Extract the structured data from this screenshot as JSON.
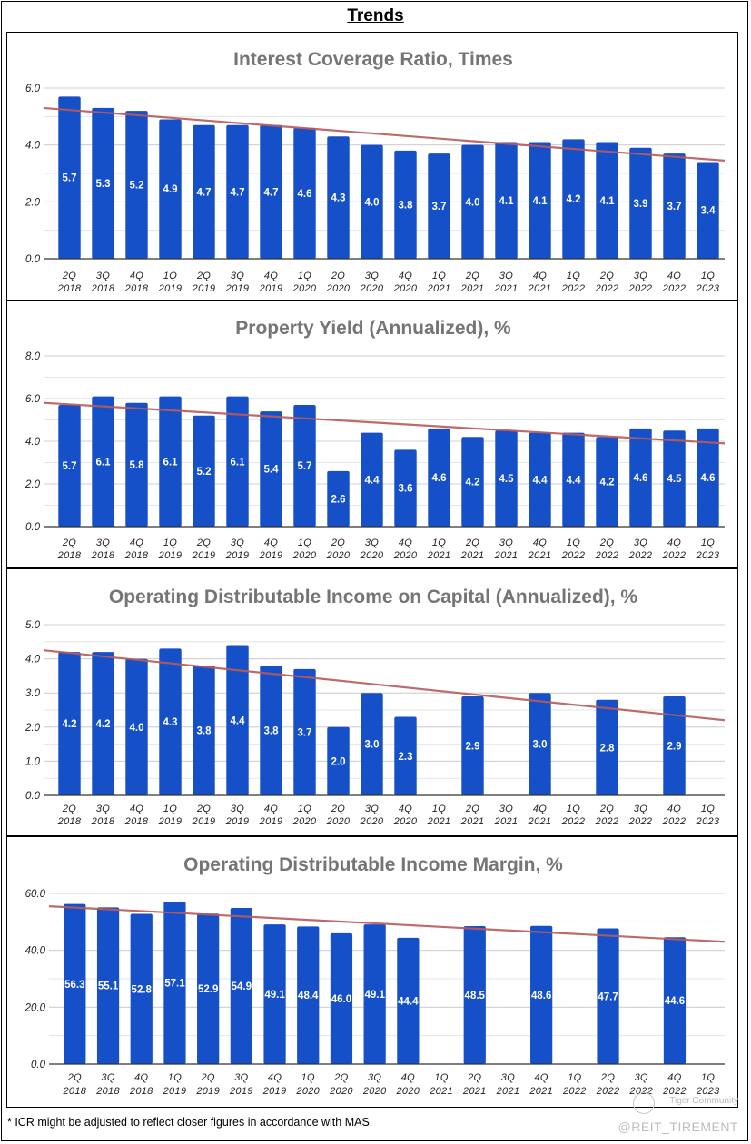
{
  "page": {
    "title": "Trends",
    "footnote": "* ICR might be adjusted to reflect closer figures in accordance with MAS",
    "watermark_brand": "Tiger Community",
    "watermark_handle": "@REIT_TIREMENT"
  },
  "colors": {
    "bar": "#1550c8",
    "trendline": "#b85a5a",
    "gridline": "#d0d0d0",
    "axis": "#333333",
    "title": "#757575"
  },
  "chart_data": [
    {
      "type": "bar",
      "title": "Interest Coverage Ratio, Times",
      "xlabel": "",
      "ylabel": "",
      "ylim": [
        0,
        6
      ],
      "yticks": [
        "0.0",
        "2.0",
        "4.0",
        "6.0"
      ],
      "minor_grid_step": 1,
      "grid": true,
      "categories": [
        "2Q 2018",
        "3Q 2018",
        "4Q 2018",
        "1Q 2019",
        "2Q 2019",
        "3Q 2019",
        "4Q 2019",
        "1Q 2020",
        "2Q 2020",
        "3Q 2020",
        "4Q 2020",
        "1Q 2021",
        "2Q 2021",
        "3Q 2021",
        "4Q 2021",
        "1Q 2022",
        "2Q 2022",
        "3Q 2022",
        "4Q 2022",
        "1Q 2023"
      ],
      "values": [
        5.7,
        5.3,
        5.2,
        4.9,
        4.7,
        4.7,
        4.7,
        4.6,
        4.3,
        4.0,
        3.8,
        3.7,
        4.0,
        4.1,
        4.1,
        4.2,
        4.1,
        3.9,
        3.7,
        3.4
      ],
      "labels": [
        "5.7",
        "5.3",
        "5.2",
        "4.9",
        "4.7",
        "4.7",
        "4.7",
        "4.6",
        "4.3",
        "4.0",
        "3.8",
        "3.7",
        "4.0",
        "4.1",
        "4.1",
        "4.2",
        "4.1",
        "3.9",
        "3.7",
        "3.4"
      ],
      "trendline": {
        "type": "linear",
        "start": 5.3,
        "end": 3.45
      }
    },
    {
      "type": "bar",
      "title": "Property Yield (Annualized), %",
      "xlabel": "",
      "ylabel": "",
      "ylim": [
        0,
        8
      ],
      "yticks": [
        "0.0",
        "2.0",
        "4.0",
        "6.0",
        "8.0"
      ],
      "minor_grid_step": 1,
      "grid": true,
      "categories": [
        "2Q 2018",
        "3Q 2018",
        "4Q 2018",
        "1Q 2019",
        "2Q 2019",
        "3Q 2019",
        "4Q 2019",
        "1Q 2020",
        "2Q 2020",
        "3Q 2020",
        "4Q 2020",
        "1Q 2021",
        "2Q 2021",
        "3Q 2021",
        "4Q 2021",
        "1Q 2022",
        "2Q 2022",
        "3Q 2022",
        "4Q 2022",
        "1Q 2023"
      ],
      "values": [
        5.7,
        6.1,
        5.8,
        6.1,
        5.2,
        6.1,
        5.4,
        5.7,
        2.6,
        4.4,
        3.6,
        4.6,
        4.2,
        4.5,
        4.4,
        4.4,
        4.2,
        4.6,
        4.5,
        4.6
      ],
      "labels": [
        "5.7",
        "6.1",
        "5.8",
        "6.1",
        "5.2",
        "6.1",
        "5.4",
        "5.7",
        "2.6",
        "4.4",
        "3.6",
        "4.6",
        "4.2",
        "4.5",
        "4.4",
        "4.4",
        "4.2",
        "4.6",
        "4.5",
        "4.6"
      ],
      "trendline": {
        "type": "linear",
        "start": 5.8,
        "end": 3.9
      }
    },
    {
      "type": "bar",
      "title": "Operating Distributable Income on Capital (Annualized), %",
      "xlabel": "",
      "ylabel": "",
      "ylim": [
        0,
        5
      ],
      "yticks": [
        "0.0",
        "1.0",
        "2.0",
        "3.0",
        "4.0",
        "5.0"
      ],
      "minor_grid_step": 0.5,
      "grid": true,
      "categories": [
        "2Q 2018",
        "3Q 2018",
        "4Q 2018",
        "1Q 2019",
        "2Q 2019",
        "3Q 2019",
        "4Q 2019",
        "1Q 2020",
        "2Q 2020",
        "3Q 2020",
        "4Q 2020",
        "1Q 2021",
        "2Q 2021",
        "3Q 2021",
        "4Q 2021",
        "1Q 2022",
        "2Q 2022",
        "3Q 2022",
        "4Q 2022",
        "1Q 2023"
      ],
      "values": [
        4.2,
        4.2,
        4.0,
        4.3,
        3.8,
        4.4,
        3.8,
        3.7,
        2.0,
        3.0,
        2.3,
        null,
        2.9,
        null,
        3.0,
        null,
        2.8,
        null,
        2.9,
        null
      ],
      "labels": [
        "4.2",
        "4.2",
        "4.0",
        "4.3",
        "3.8",
        "4.4",
        "3.8",
        "3.7",
        "2.0",
        "3.0",
        "2.3",
        "",
        "2.9",
        "",
        "3.0",
        "",
        "2.8",
        "",
        "2.9",
        ""
      ],
      "trendline": {
        "type": "linear",
        "start": 4.25,
        "end": 2.2
      }
    },
    {
      "type": "bar",
      "title": "Operating Distributable Income Margin, %",
      "xlabel": "",
      "ylabel": "",
      "ylim": [
        0,
        60
      ],
      "yticks": [
        "0.0",
        "20.0",
        "40.0",
        "60.0"
      ],
      "minor_grid_step": 10,
      "grid": true,
      "categories": [
        "2Q 2018",
        "3Q 2018",
        "4Q 2018",
        "1Q 2019",
        "2Q 2019",
        "3Q 2019",
        "4Q 2019",
        "1Q 2020",
        "2Q 2020",
        "3Q 2020",
        "4Q 2020",
        "1Q 2021",
        "2Q 2021",
        "3Q 2021",
        "4Q 2021",
        "1Q 2022",
        "2Q 2022",
        "3Q 2022",
        "4Q 2022",
        "1Q 2023"
      ],
      "values": [
        56.3,
        55.1,
        52.8,
        57.1,
        52.9,
        54.9,
        49.1,
        48.4,
        46.0,
        49.1,
        44.4,
        null,
        48.5,
        null,
        48.6,
        null,
        47.7,
        null,
        44.6,
        null
      ],
      "labels": [
        "56.3",
        "55.1",
        "52.8",
        "57.1",
        "52.9",
        "54.9",
        "49.1",
        "48.4",
        "46.0",
        "49.1",
        "44.4",
        "",
        "48.5",
        "",
        "48.6",
        "",
        "47.7",
        "",
        "44.6",
        ""
      ],
      "trendline": {
        "type": "linear",
        "start": 55.5,
        "end": 43.0
      }
    }
  ]
}
